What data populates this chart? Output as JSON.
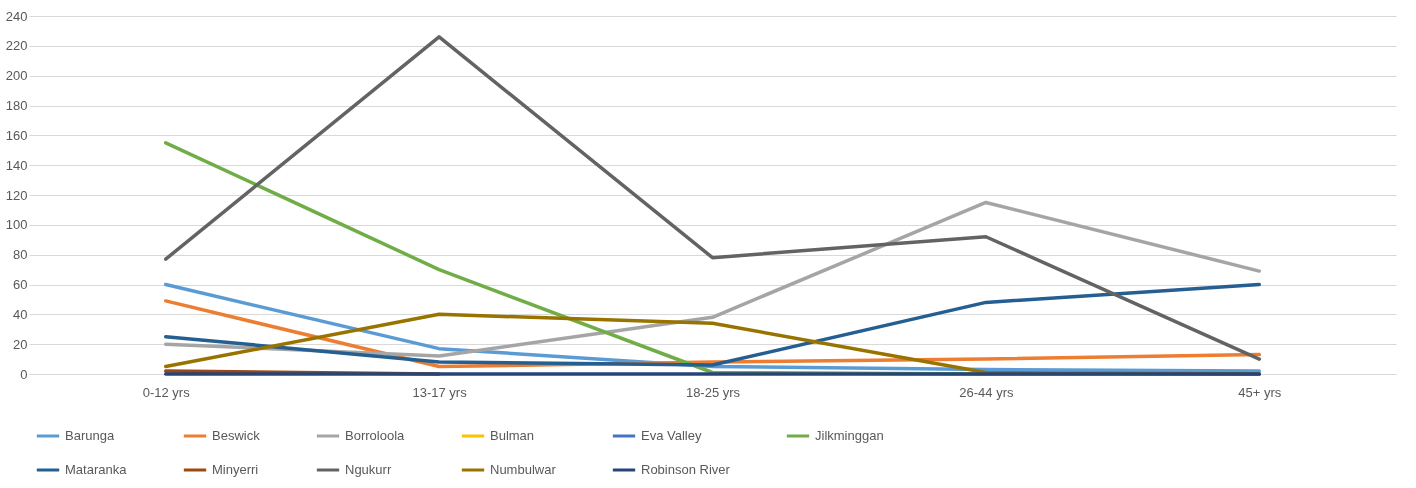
{
  "chart_data": {
    "type": "line",
    "categories": [
      "0-12 yrs",
      "13-17 yrs",
      "18-25 yrs",
      "26-44 yrs",
      "45+ yrs"
    ],
    "ylim": [
      0,
      240
    ],
    "yticks": [
      0,
      20,
      40,
      60,
      80,
      100,
      120,
      140,
      160,
      180,
      200,
      220,
      240
    ],
    "grid": "y",
    "legend": "bottom",
    "marker": "none",
    "line_style": "solid",
    "series": [
      {
        "name": "Barunga",
        "color": "#5b9bd5",
        "values": [
          60,
          17,
          5,
          3,
          2
        ]
      },
      {
        "name": "Beswick",
        "color": "#ed7d31",
        "values": [
          49,
          5,
          8,
          10,
          13
        ]
      },
      {
        "name": "Borroloola",
        "color": "#a5a5a5",
        "values": [
          20,
          12,
          38,
          115,
          69
        ]
      },
      {
        "name": "Bulman",
        "color": "#ffc000",
        "values": [
          null,
          null,
          null,
          null,
          null
        ]
      },
      {
        "name": "Eva Valley",
        "color": "#4472c4",
        "values": [
          null,
          null,
          null,
          null,
          null
        ]
      },
      {
        "name": "Jilkminggan",
        "color": "#70ad47",
        "values": [
          155,
          70,
          1,
          0,
          0
        ]
      },
      {
        "name": "Mataranka",
        "color": "#255e91",
        "values": [
          25,
          8,
          6,
          48,
          60
        ]
      },
      {
        "name": "Minyerri",
        "color": "#9e480e",
        "values": [
          2,
          0,
          null,
          null,
          null
        ]
      },
      {
        "name": "Ngukurr",
        "color": "#636363",
        "values": [
          77,
          226,
          78,
          92,
          10
        ]
      },
      {
        "name": "Numbulwar",
        "color": "#997300",
        "values": [
          5,
          40,
          34,
          1,
          0
        ]
      },
      {
        "name": "Robinson River",
        "color": "#264478",
        "values": [
          0,
          0,
          0,
          0,
          0
        ]
      }
    ]
  }
}
